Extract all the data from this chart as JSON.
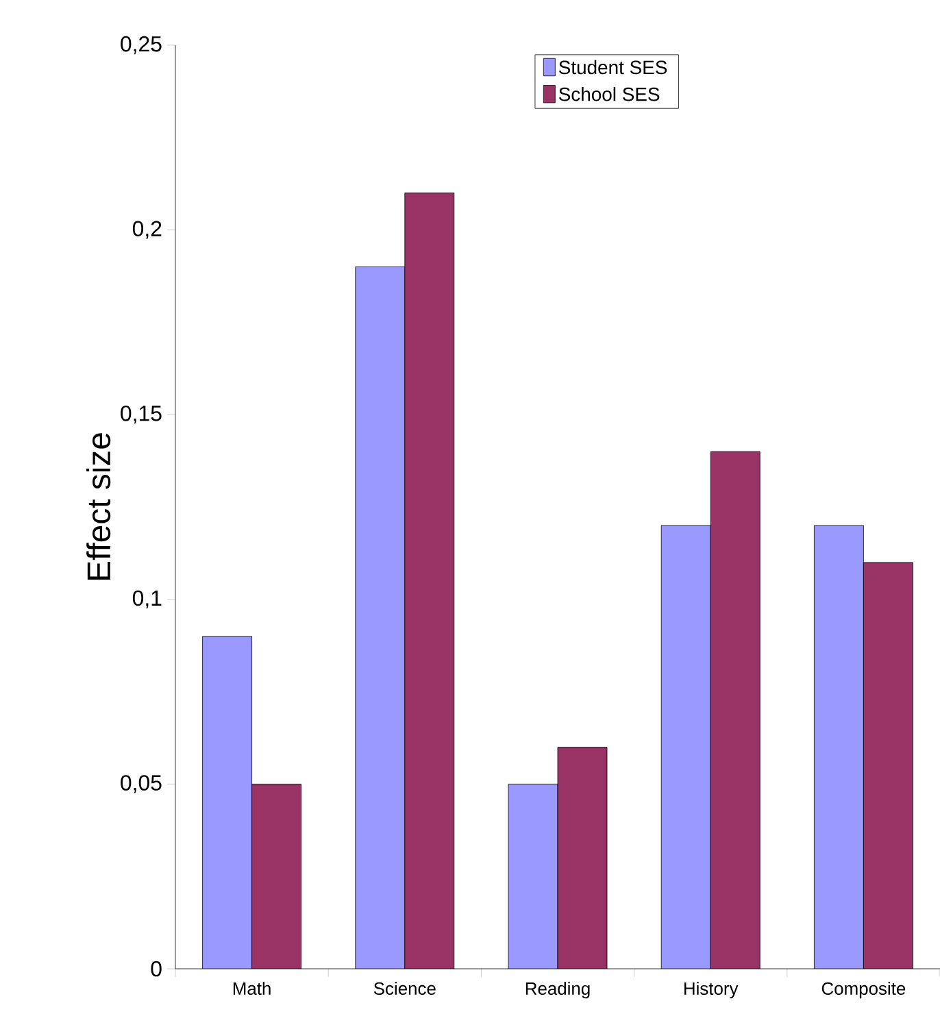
{
  "chart_data": {
    "type": "bar",
    "ylabel": "Effect size",
    "categories": [
      "Math",
      "Science",
      "Reading",
      "History",
      "Composite"
    ],
    "series": [
      {
        "name": "Student SES",
        "color": "#9999ff",
        "values": [
          0.09,
          0.19,
          0.05,
          0.12,
          0.12
        ]
      },
      {
        "name": "School SES",
        "color": "#993366",
        "values": [
          0.05,
          0.21,
          0.06,
          0.14,
          0.11
        ]
      }
    ],
    "ylim": [
      0,
      0.25
    ],
    "yticks": [
      0,
      {
        "value": 0.05,
        "label": "0,05"
      },
      {
        "value": 0.1,
        "label": "0,1"
      },
      {
        "value": 0.15,
        "label": "0,15"
      },
      {
        "value": 0.2,
        "label": "0,2"
      },
      {
        "value": 0.25,
        "label": "0,25"
      }
    ],
    "legend": "top right"
  }
}
